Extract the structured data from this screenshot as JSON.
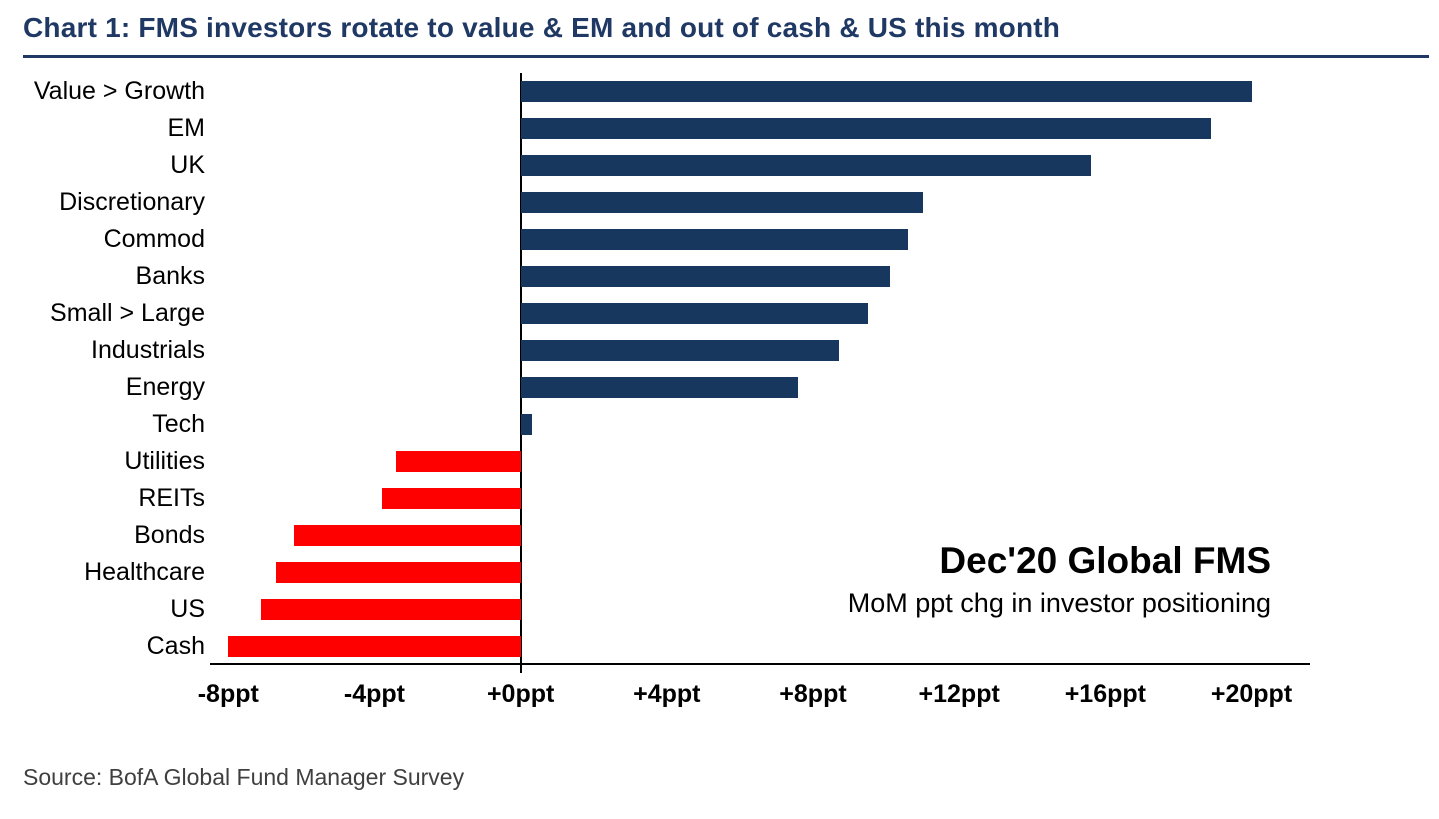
{
  "page": {
    "title": "Chart 1: FMS investors rotate to value & EM and out of cash & US this month",
    "source": "Source: BofA Global Fund Manager Survey"
  },
  "annotation": {
    "title": "Dec'20 Global FMS",
    "subtitle": "MoM ppt chg in investor positioning"
  },
  "colors": {
    "positive_bar": "#17375e",
    "negative_bar": "#fe0000",
    "title_text": "#1f3864",
    "axis": "#000000"
  },
  "chart_data": {
    "type": "bar",
    "orientation": "horizontal",
    "title": "Chart 1: FMS investors rotate to value & EM and out of cash & US this month",
    "unit": "ppt",
    "categories": [
      "Value > Growth",
      "EM",
      "UK",
      "Discretionary",
      "Commod",
      "Banks",
      "Small > Large",
      "Industrials",
      "Energy",
      "Tech",
      "Utilities",
      "REITs",
      "Bonds",
      "Healthcare",
      "US",
      "Cash"
    ],
    "values": [
      20.0,
      18.9,
      15.6,
      11.0,
      10.6,
      10.1,
      9.5,
      8.7,
      7.6,
      0.3,
      -3.4,
      -3.8,
      -6.2,
      -6.7,
      -7.1,
      -8.0
    ],
    "xlim": [
      -8.5,
      21.6
    ],
    "x_ticks": [
      {
        "value": -8,
        "label": "-8ppt"
      },
      {
        "value": -4,
        "label": "-4ppt"
      },
      {
        "value": 0,
        "label": "+0ppt"
      },
      {
        "value": 4,
        "label": "+4ppt"
      },
      {
        "value": 8,
        "label": "+8ppt"
      },
      {
        "value": 12,
        "label": "+12ppt"
      },
      {
        "value": 16,
        "label": "+16ppt"
      },
      {
        "value": 20,
        "label": "+20ppt"
      }
    ],
    "grid": false,
    "legend": "none"
  }
}
